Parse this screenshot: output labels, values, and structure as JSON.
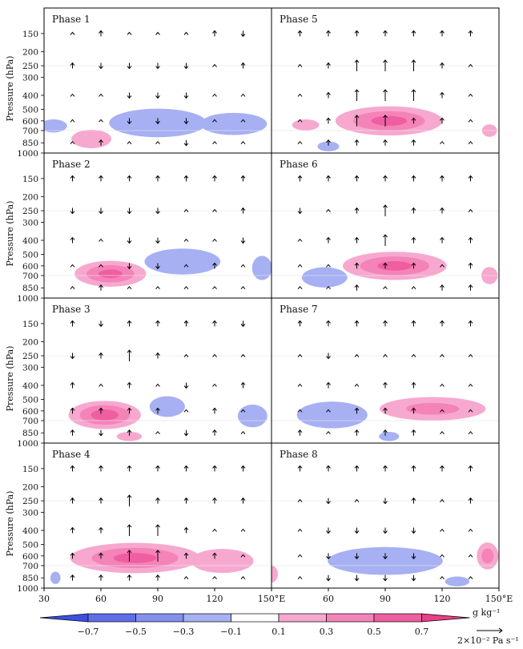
{
  "chart_data": {
    "type": "heatmap",
    "description_fields": "Composite longitude-pressure cross sections of specific humidity anomaly (shaded) and vertical velocity (vectors) for 8 phases",
    "ylabel": "Pressure (hPa)",
    "y_ticks": [
      150,
      200,
      250,
      300,
      400,
      500,
      600,
      700,
      850,
      1000
    ],
    "y_range": [
      100,
      1000
    ],
    "x_ticks_left": [
      "30",
      "60",
      "90",
      "120",
      "150°E"
    ],
    "x_ticks_right": [
      "60",
      "90",
      "120",
      "150°E"
    ],
    "x_range_left": [
      30,
      150
    ],
    "x_range_right": [
      30,
      150
    ],
    "colorbar": {
      "levels": [
        -0.7,
        -0.5,
        -0.3,
        -0.1,
        0.1,
        0.3,
        0.5,
        0.7
      ],
      "labels": [
        "−0.7",
        "−0.5",
        "−0.3",
        "−0.1",
        "0.1",
        "0.3",
        "0.5",
        "0.7"
      ],
      "colors": [
        "#5f6fe8",
        "#8390ee",
        "#a6b0f3",
        "#ffffff",
        "#f7a8cf",
        "#f483b8",
        "#ef5ea0"
      ],
      "low_end_color": "#3c4fe3",
      "high_end_color": "#e83f86",
      "unit": "g kg⁻¹"
    },
    "reference_vector": {
      "label": "2×10⁻² Pa s⁻¹"
    },
    "vector_lons": [
      45,
      60,
      75,
      90,
      105,
      120,
      135
    ],
    "vector_levels": [
      150,
      250,
      400,
      600,
      850
    ],
    "panels": [
      {
        "name": "Phase 1",
        "anomalies": [
          {
            "lon": 90,
            "p": 620,
            "dlon": 30,
            "dp": 230,
            "value": -0.55
          },
          {
            "lon": 130,
            "p": 630,
            "dlon": 22,
            "dp": 180,
            "value": -0.35
          },
          {
            "lon": 35,
            "p": 650,
            "dlon": 10,
            "dp": 90,
            "value": -0.2
          },
          {
            "lon": 55,
            "p": 800,
            "dlon": 14,
            "dp": 190,
            "value": 0.25
          }
        ],
        "w": [
          [
            0,
            1,
            0,
            0,
            0,
            1,
            -1
          ],
          [
            1,
            -1,
            -1,
            -1,
            -1,
            0,
            1
          ],
          [
            0,
            0,
            -1,
            -1,
            -1,
            0,
            0
          ],
          [
            0,
            0,
            -1,
            -1,
            -1,
            0,
            0
          ],
          [
            0,
            1,
            0,
            0,
            -1,
            0,
            0
          ]
        ]
      },
      {
        "name": "Phase 5",
        "anomalies": [
          {
            "lon": 92,
            "p": 600,
            "dlon": 33,
            "dp": 230,
            "value": 0.55
          },
          {
            "lon": 48,
            "p": 640,
            "dlon": 10,
            "dp": 60,
            "value": 0.2
          },
          {
            "lon": 145,
            "p": 700,
            "dlon": 6,
            "dp": 100,
            "value": 0.15
          },
          {
            "lon": 60,
            "p": 900,
            "dlon": 8,
            "dp": 60,
            "value": -0.2
          }
        ],
        "w": [
          [
            1,
            1,
            1,
            1,
            1,
            1,
            1
          ],
          [
            0,
            1,
            2,
            2,
            2,
            1,
            0
          ],
          [
            0,
            1,
            2,
            2,
            2,
            1,
            0
          ],
          [
            0,
            1,
            2,
            2,
            1,
            1,
            0
          ],
          [
            0,
            1,
            1,
            1,
            1,
            0,
            0
          ]
        ]
      },
      {
        "name": "Phase 2",
        "anomalies": [
          {
            "lon": 65,
            "p": 680,
            "dlon": 22,
            "dp": 220,
            "value": 0.55
          },
          {
            "lon": 103,
            "p": 560,
            "dlon": 25,
            "dp": 200,
            "value": -0.35
          },
          {
            "lon": 145,
            "p": 620,
            "dlon": 7,
            "dp": 220,
            "value": -0.25
          }
        ],
        "w": [
          [
            1,
            1,
            1,
            1,
            1,
            1,
            1
          ],
          [
            -1,
            -1,
            -1,
            -1,
            0,
            0,
            1
          ],
          [
            1,
            0,
            -1,
            -1,
            0,
            0,
            -1
          ],
          [
            0,
            0,
            -1,
            -1,
            0,
            1,
            0
          ],
          [
            0,
            1,
            0,
            0,
            0,
            0,
            0
          ]
        ]
      },
      {
        "name": "Phase 6",
        "anomalies": [
          {
            "lon": 95,
            "p": 600,
            "dlon": 32,
            "dp": 220,
            "value": 0.55
          },
          {
            "lon": 58,
            "p": 720,
            "dlon": 15,
            "dp": 180,
            "value": -0.35
          },
          {
            "lon": 145,
            "p": 700,
            "dlon": 6,
            "dp": 160,
            "value": 0.2
          }
        ],
        "w": [
          [
            1,
            1,
            1,
            1,
            1,
            1,
            1
          ],
          [
            -1,
            0,
            1,
            2,
            1,
            1,
            0
          ],
          [
            0,
            1,
            1,
            2,
            1,
            1,
            1
          ],
          [
            0,
            0,
            1,
            1,
            1,
            0,
            1
          ],
          [
            0,
            0,
            1,
            0,
            0,
            1,
            1
          ]
        ]
      },
      {
        "name": "Phase 3",
        "anomalies": [
          {
            "lon": 62,
            "p": 640,
            "dlon": 22,
            "dp": 230,
            "value": 0.6
          },
          {
            "lon": 95,
            "p": 560,
            "dlon": 12,
            "dp": 150,
            "value": -0.3
          },
          {
            "lon": 140,
            "p": 650,
            "dlon": 10,
            "dp": 200,
            "value": -0.3
          },
          {
            "lon": 75,
            "p": 900,
            "dlon": 10,
            "dp": 60,
            "value": 0.15
          }
        ],
        "w": [
          [
            1,
            -1,
            1,
            1,
            1,
            1,
            -1
          ],
          [
            -1,
            1,
            2,
            1,
            0,
            0,
            0
          ],
          [
            1,
            0,
            1,
            0,
            -1,
            0,
            1
          ],
          [
            1,
            1,
            1,
            1,
            0,
            1,
            0
          ],
          [
            1,
            -1,
            1,
            0,
            -1,
            1,
            0
          ]
        ]
      },
      {
        "name": "Phase 7",
        "anomalies": [
          {
            "lon": 62,
            "p": 640,
            "dlon": 22,
            "dp": 220,
            "value": -0.5
          },
          {
            "lon": 115,
            "p": 580,
            "dlon": 35,
            "dp": 180,
            "value": 0.35
          },
          {
            "lon": 92,
            "p": 900,
            "dlon": 8,
            "dp": 60,
            "value": -0.15
          }
        ],
        "w": [
          [
            1,
            1,
            1,
            1,
            1,
            1,
            1
          ],
          [
            0,
            -1,
            0,
            0,
            0,
            0,
            0
          ],
          [
            0,
            1,
            0,
            1,
            1,
            0,
            0
          ],
          [
            0,
            0,
            1,
            1,
            1,
            0,
            0
          ],
          [
            1,
            0,
            1,
            1,
            1,
            0,
            0
          ]
        ]
      },
      {
        "name": "Phase 4",
        "anomalies": [
          {
            "lon": 78,
            "p": 620,
            "dlon": 40,
            "dp": 250,
            "value": 0.55
          },
          {
            "lon": 124,
            "p": 650,
            "dlon": 22,
            "dp": 230,
            "value": 0.25
          },
          {
            "lon": 36,
            "p": 850,
            "dlon": 4,
            "dp": 120,
            "value": -0.15
          }
        ],
        "w": [
          [
            1,
            1,
            1,
            1,
            1,
            1,
            1
          ],
          [
            1,
            1,
            2,
            1,
            1,
            1,
            1
          ],
          [
            1,
            1,
            2,
            2,
            1,
            0,
            0
          ],
          [
            1,
            1,
            2,
            2,
            1,
            1,
            0
          ],
          [
            1,
            1,
            1,
            1,
            0,
            0,
            0
          ]
        ]
      },
      {
        "name": "Phase 8",
        "anomalies": [
          {
            "lon": 90,
            "p": 650,
            "dlon": 35,
            "dp": 230,
            "value": -0.6
          },
          {
            "lon": 144,
            "p": 600,
            "dlon": 7,
            "dp": 220,
            "value": 0.4
          },
          {
            "lon": 30,
            "p": 800,
            "dlon": 5,
            "dp": 200,
            "value": 0.15
          },
          {
            "lon": 128,
            "p": 900,
            "dlon": 9,
            "dp": 60,
            "value": -0.2
          }
        ],
        "w": [
          [
            1,
            1,
            1,
            1,
            1,
            1,
            1
          ],
          [
            0,
            -1,
            0,
            -1,
            1,
            0,
            1
          ],
          [
            0,
            -1,
            -1,
            -1,
            -1,
            0,
            0
          ],
          [
            0,
            -1,
            -1,
            -1,
            -1,
            0,
            0
          ],
          [
            0,
            -1,
            -1,
            -1,
            -1,
            0,
            0
          ]
        ]
      }
    ]
  }
}
